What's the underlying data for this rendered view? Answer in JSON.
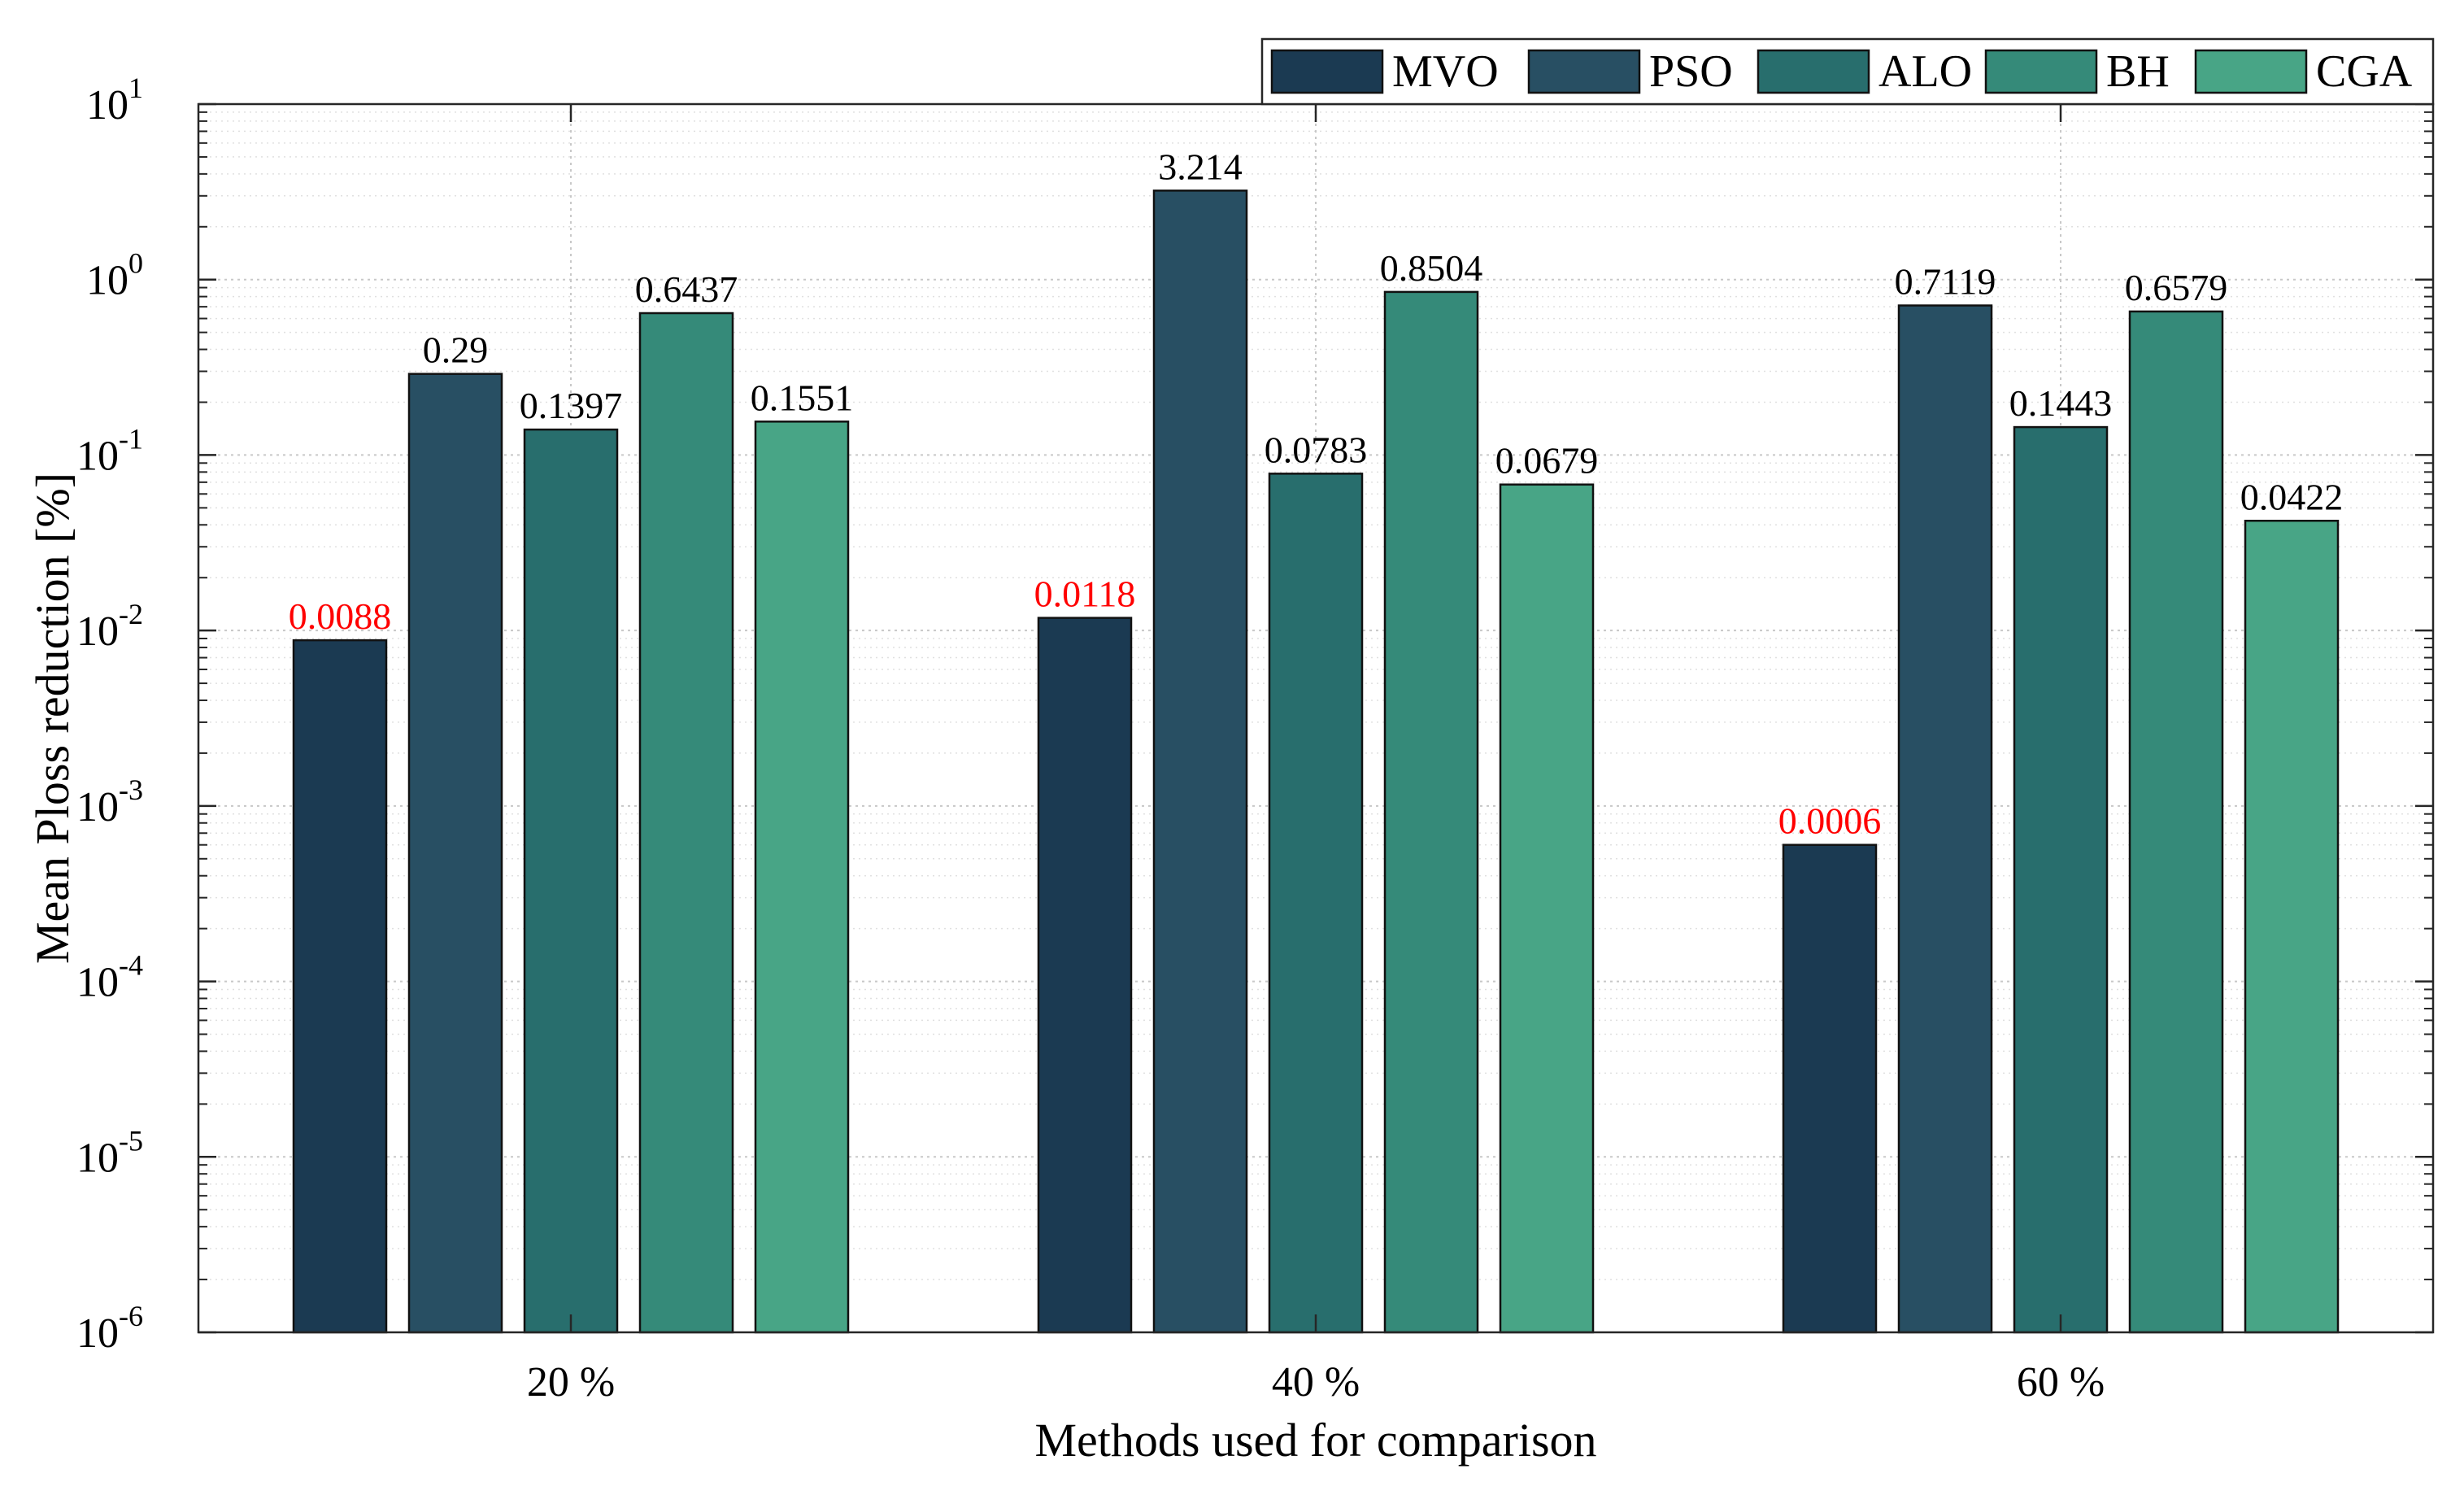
{
  "chart_data": {
    "type": "bar",
    "title": "",
    "xlabel": "Methods used for comparison",
    "ylabel": "Mean Ploss reduction [%]",
    "yscale": "log",
    "ylim": [
      1e-06,
      10
    ],
    "ytick_base": "10",
    "ytick_exponents": [
      "-6",
      "-5",
      "-4",
      "-3",
      "-2",
      "-1",
      "0",
      "1"
    ],
    "grid": true,
    "legend_position": "top-right",
    "categories": [
      "20 %",
      "40 %",
      "60 %"
    ],
    "series": [
      {
        "name": "MVO",
        "color": "#1b3a52",
        "values": [
          0.0088,
          0.0118,
          0.0006
        ],
        "labels": [
          "0.0088",
          "0.0118",
          "0.0006"
        ],
        "label_color": "#ff0000"
      },
      {
        "name": "PSO",
        "color": "#284f63",
        "values": [
          0.29,
          3.214,
          0.7119
        ],
        "labels": [
          "0.29",
          "3.214",
          "0.7119"
        ],
        "label_color": "#000000"
      },
      {
        "name": "ALO",
        "color": "#286e6d",
        "values": [
          0.1397,
          0.0783,
          0.1443
        ],
        "labels": [
          "0.1397",
          "0.0783",
          "0.1443"
        ],
        "label_color": "#000000"
      },
      {
        "name": "BH",
        "color": "#358a79",
        "values": [
          0.6437,
          0.8504,
          0.6579
        ],
        "labels": [
          "0.6437",
          "0.8504",
          "0.6579"
        ],
        "label_color": "#000000"
      },
      {
        "name": "CGA",
        "color": "#48a586",
        "values": [
          0.1551,
          0.0679,
          0.0422
        ],
        "labels": [
          "0.1551",
          "0.0679",
          "0.0422"
        ],
        "label_color": "#000000"
      }
    ]
  }
}
